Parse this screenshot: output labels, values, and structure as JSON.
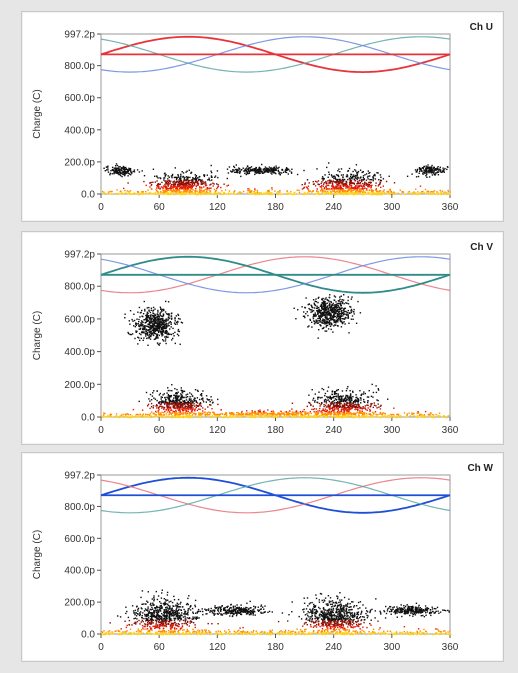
{
  "chart_data": [
    {
      "type": "scatter",
      "title": "Ch U",
      "ylabel": "Charge (C)",
      "xlabel": "",
      "xlim": [
        0,
        360
      ],
      "ylim": [
        0,
        997.2
      ],
      "xticks": [
        "0",
        "60",
        "120",
        "180",
        "240",
        "300",
        "360"
      ],
      "yticks": [
        "0.0",
        "200.0p",
        "400.0p",
        "600.0p",
        "800.0p",
        "997.2p"
      ],
      "reference_waves": [
        {
          "color": "#e8333a",
          "kind": "sine",
          "phase_deg": 0,
          "emphasis": "bold"
        },
        {
          "color": "#5aa8a4",
          "kind": "sine",
          "phase_deg": 120,
          "emphasis": "light"
        },
        {
          "color": "#6a86e0",
          "kind": "sine",
          "phase_deg": 240,
          "emphasis": "light"
        }
      ],
      "reference_line": {
        "color": "#e8333a",
        "value": 870
      },
      "clusters": [
        {
          "x_center": 85,
          "x_spread": 30,
          "y_center": 60,
          "y_spread": 60,
          "count": 520
        },
        {
          "x_center": 20,
          "x_spread": 15,
          "y_center": 150,
          "y_spread": 25,
          "count": 160
        },
        {
          "x_center": 165,
          "x_spread": 30,
          "y_center": 150,
          "y_spread": 20,
          "count": 240
        },
        {
          "x_center": 255,
          "x_spread": 35,
          "y_center": 60,
          "y_spread": 70,
          "count": 560
        },
        {
          "x_center": 340,
          "x_spread": 15,
          "y_center": 150,
          "y_spread": 25,
          "count": 160
        }
      ]
    },
    {
      "type": "scatter",
      "title": "Ch V",
      "ylabel": "Charge (C)",
      "xlabel": "",
      "xlim": [
        0,
        360
      ],
      "ylim": [
        0,
        997.2
      ],
      "xticks": [
        "0",
        "60",
        "120",
        "180",
        "240",
        "300",
        "360"
      ],
      "yticks": [
        "0.0",
        "200.0p",
        "400.0p",
        "600.0p",
        "800.0p",
        "997.2p"
      ],
      "reference_waves": [
        {
          "color": "#e8707a",
          "kind": "sine",
          "phase_deg": 240,
          "emphasis": "light"
        },
        {
          "color": "#2f8c88",
          "kind": "sine",
          "phase_deg": 0,
          "emphasis": "bold"
        },
        {
          "color": "#6a86e0",
          "kind": "sine",
          "phase_deg": 120,
          "emphasis": "light"
        }
      ],
      "reference_line": {
        "color": "#2f8c88",
        "value": 870
      },
      "clusters": [
        {
          "x_center": 55,
          "x_spread": 20,
          "y_center": 570,
          "y_spread": 80,
          "count": 560
        },
        {
          "x_center": 80,
          "x_spread": 25,
          "y_center": 80,
          "y_spread": 70,
          "count": 520
        },
        {
          "x_center": 235,
          "x_spread": 20,
          "y_center": 640,
          "y_spread": 80,
          "count": 560
        },
        {
          "x_center": 250,
          "x_spread": 30,
          "y_center": 80,
          "y_spread": 70,
          "count": 520
        },
        {
          "x_center": 180,
          "x_spread": 100,
          "y_center": 25,
          "y_spread": 15,
          "count": 300
        }
      ]
    },
    {
      "type": "scatter",
      "title": "Ch W",
      "ylabel": "Charge (C)",
      "xlabel": "",
      "xlim": [
        0,
        360
      ],
      "ylim": [
        0,
        997.2
      ],
      "xticks": [
        "0",
        "60",
        "120",
        "180",
        "240",
        "300",
        "360"
      ],
      "yticks": [
        "0.0",
        "200.0p",
        "400.0p",
        "600.0p",
        "800.0p",
        "997.2p"
      ],
      "reference_waves": [
        {
          "color": "#1f4fd8",
          "kind": "sine",
          "phase_deg": 0,
          "emphasis": "bold"
        },
        {
          "color": "#e8707a",
          "kind": "sine",
          "phase_deg": 120,
          "emphasis": "light"
        },
        {
          "color": "#5aa8a4",
          "kind": "sine",
          "phase_deg": 240,
          "emphasis": "light"
        }
      ],
      "reference_line": {
        "color": "#1f4fd8",
        "value": 870
      },
      "clusters": [
        {
          "x_center": 65,
          "x_spread": 30,
          "y_center": 110,
          "y_spread": 90,
          "count": 700
        },
        {
          "x_center": 140,
          "x_spread": 25,
          "y_center": 150,
          "y_spread": 25,
          "count": 260
        },
        {
          "x_center": 240,
          "x_spread": 30,
          "y_center": 110,
          "y_spread": 90,
          "count": 700
        },
        {
          "x_center": 320,
          "x_spread": 25,
          "y_center": 150,
          "y_spread": 25,
          "count": 260
        }
      ]
    }
  ],
  "panels": [
    {
      "channel_label": "Ch U"
    },
    {
      "channel_label": "Ch V"
    },
    {
      "channel_label": "Ch W"
    }
  ]
}
